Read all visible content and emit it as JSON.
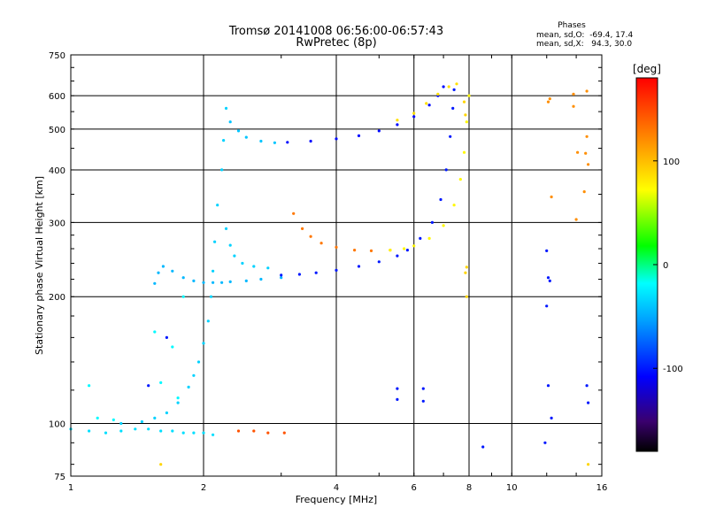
{
  "header": {
    "title": "Tromsø 20141008 06:56:00-06:57:43",
    "subtitle": "RwPretec (8p)"
  },
  "phases_box": {
    "heading": "Phases",
    "line_o": "mean, sd,O:  -69.4, 17.4",
    "line_x": "mean, sd,X:   94.3, 30.0"
  },
  "chart_data": {
    "type": "scatter",
    "title": "Tromsø 20141008 06:56:00-06:57:43",
    "subtitle": "RwPretec (8p)",
    "xlabel": "Frequency [MHz]",
    "ylabel": "Stationary phase Virtual Height [km]",
    "xscale": "log",
    "yscale": "log",
    "xlim": [
      1,
      16
    ],
    "ylim": [
      75,
      750
    ],
    "xticks": [
      {
        "v": 1,
        "label": "1"
      },
      {
        "v": 2,
        "label": "2"
      },
      {
        "v": 4,
        "label": "4"
      },
      {
        "v": 6,
        "label": "6"
      },
      {
        "v": 8,
        "label": "8"
      },
      {
        "v": 10,
        "label": "10"
      },
      {
        "v": 16,
        "label": "16"
      }
    ],
    "yticks": [
      {
        "v": 75,
        "label": "75"
      },
      {
        "v": 100,
        "label": "100"
      },
      {
        "v": 200,
        "label": "200"
      },
      {
        "v": 300,
        "label": "300"
      },
      {
        "v": 400,
        "label": "400"
      },
      {
        "v": 500,
        "label": "500"
      },
      {
        "v": 600,
        "label": "600"
      },
      {
        "v": 750,
        "label": "750"
      }
    ],
    "grid": true,
    "colorbar": {
      "label": "[deg]",
      "min": -180,
      "max": 180,
      "ticks": [
        {
          "v": 100,
          "label": "100"
        },
        {
          "v": 0,
          "label": "0"
        },
        {
          "v": -100,
          "label": "-100"
        }
      ],
      "colorscale": "rainbow"
    },
    "series": [
      {
        "points": [
          [
            1.0,
            97
          ],
          [
            1.1,
            96
          ],
          [
            1.2,
            95
          ],
          [
            1.3,
            96
          ],
          [
            1.4,
            97
          ],
          [
            1.5,
            97
          ],
          [
            1.6,
            96
          ],
          [
            1.7,
            96
          ],
          [
            1.8,
            95
          ],
          [
            1.9,
            95
          ],
          [
            2.0,
            95
          ],
          [
            2.1,
            94
          ]
        ],
        "phase": -30
      },
      {
        "points": [
          [
            1.3,
            100
          ],
          [
            1.45,
            101
          ],
          [
            1.55,
            103
          ],
          [
            1.65,
            106
          ],
          [
            1.75,
            112
          ],
          [
            1.85,
            122
          ],
          [
            1.9,
            130
          ],
          [
            1.95,
            140
          ],
          [
            2.0,
            155
          ],
          [
            2.05,
            175
          ],
          [
            2.08,
            200
          ],
          [
            2.1,
            230
          ],
          [
            2.12,
            270
          ],
          [
            2.15,
            330
          ],
          [
            2.2,
            400
          ],
          [
            2.22,
            470
          ],
          [
            2.25,
            560
          ]
        ],
        "phase": -35
      },
      {
        "points": [
          [
            1.55,
            215
          ],
          [
            1.58,
            228
          ],
          [
            1.62,
            236
          ],
          [
            1.7,
            230
          ],
          [
            1.8,
            222
          ],
          [
            1.9,
            218
          ],
          [
            2.0,
            216
          ],
          [
            2.1,
            216
          ],
          [
            2.2,
            216
          ],
          [
            2.3,
            217
          ],
          [
            2.5,
            218
          ],
          [
            2.7,
            220
          ],
          [
            3.0,
            222
          ]
        ],
        "phase": -45
      },
      {
        "points": [
          [
            2.25,
            290
          ],
          [
            2.3,
            265
          ],
          [
            2.35,
            250
          ],
          [
            2.45,
            240
          ],
          [
            2.6,
            236
          ],
          [
            2.8,
            234
          ]
        ],
        "phase": -35
      },
      {
        "points": [
          [
            2.3,
            520
          ],
          [
            2.4,
            495
          ],
          [
            2.5,
            478
          ],
          [
            2.7,
            468
          ],
          [
            2.9,
            464
          ]
        ],
        "phase": -40
      },
      {
        "points": [
          [
            3.0,
            225
          ],
          [
            3.3,
            226
          ],
          [
            3.6,
            228
          ],
          [
            4.0,
            231
          ],
          [
            4.5,
            236
          ],
          [
            5.0,
            242
          ],
          [
            5.5,
            250
          ],
          [
            5.8,
            258
          ],
          [
            6.2,
            275
          ],
          [
            6.6,
            300
          ],
          [
            6.9,
            340
          ],
          [
            7.1,
            400
          ],
          [
            7.25,
            480
          ],
          [
            7.35,
            560
          ],
          [
            7.4,
            620
          ]
        ],
        "phase": -100
      },
      {
        "points": [
          [
            3.1,
            465
          ],
          [
            3.5,
            468
          ],
          [
            4.0,
            474
          ],
          [
            4.5,
            482
          ],
          [
            5.0,
            495
          ],
          [
            5.5,
            512
          ],
          [
            6.0,
            535
          ],
          [
            6.5,
            570
          ],
          [
            6.8,
            600
          ],
          [
            7.0,
            630
          ]
        ],
        "phase": -105
      },
      {
        "points": [
          [
            3.2,
            315
          ],
          [
            3.35,
            290
          ],
          [
            3.5,
            278
          ],
          [
            3.7,
            268
          ],
          [
            4.0,
            262
          ],
          [
            4.4,
            258
          ],
          [
            4.8,
            257
          ],
          [
            5.3,
            258
          ]
        ],
        "phase": 130
      },
      {
        "points": [
          [
            5.3,
            258
          ],
          [
            5.7,
            260
          ],
          [
            6.0,
            264
          ],
          [
            6.5,
            275
          ],
          [
            7.0,
            295
          ],
          [
            7.4,
            330
          ],
          [
            7.65,
            380
          ],
          [
            7.8,
            440
          ],
          [
            7.9,
            520
          ],
          [
            8.0,
            600
          ]
        ],
        "phase": 75
      },
      {
        "points": [
          [
            5.5,
            525
          ],
          [
            6.0,
            545
          ],
          [
            6.4,
            575
          ],
          [
            6.8,
            605
          ],
          [
            7.2,
            630
          ],
          [
            7.5,
            640
          ]
        ],
        "phase": 85
      },
      {
        "points": [
          [
            2.4,
            96
          ],
          [
            2.6,
            96
          ],
          [
            2.8,
            95
          ],
          [
            3.05,
            95
          ]
        ],
        "phase": 145
      },
      {
        "points": [
          [
            12.2,
            590
          ],
          [
            13.8,
            605
          ],
          [
            14.8,
            615
          ],
          [
            14.8,
            480
          ],
          [
            14.6,
            355
          ],
          [
            12.3,
            345
          ],
          [
            14.0,
            305
          ],
          [
            14.1,
            440
          ],
          [
            14.7,
            438
          ],
          [
            14.9,
            412
          ],
          [
            12.1,
            580
          ],
          [
            13.8,
            566
          ]
        ],
        "phase": 120
      },
      {
        "points": [
          [
            12.0,
            257
          ],
          [
            12.1,
            222
          ],
          [
            12.2,
            218
          ],
          [
            12.0,
            190
          ],
          [
            12.1,
            123
          ],
          [
            14.8,
            123
          ],
          [
            14.9,
            112
          ],
          [
            11.9,
            90
          ],
          [
            12.3,
            103
          ],
          [
            8.6,
            88
          ],
          [
            1.5,
            123
          ],
          [
            5.5,
            121
          ],
          [
            5.5,
            114
          ],
          [
            6.3,
            121
          ],
          [
            6.3,
            113
          ],
          [
            1.65,
            160
          ]
        ],
        "phase": -100
      },
      {
        "points": [
          [
            1.1,
            123
          ],
          [
            1.55,
            165
          ],
          [
            1.7,
            152
          ],
          [
            1.6,
            125
          ],
          [
            1.75,
            115
          ],
          [
            1.8,
            200
          ],
          [
            1.25,
            102
          ],
          [
            1.15,
            103
          ]
        ],
        "phase": -20
      },
      {
        "points": [
          [
            7.9,
            200
          ],
          [
            7.85,
            228
          ],
          [
            7.9,
            235
          ],
          [
            7.85,
            540
          ],
          [
            7.8,
            580
          ],
          [
            14.9,
            80
          ],
          [
            1.6,
            80
          ]
        ],
        "phase": 90
      }
    ]
  }
}
